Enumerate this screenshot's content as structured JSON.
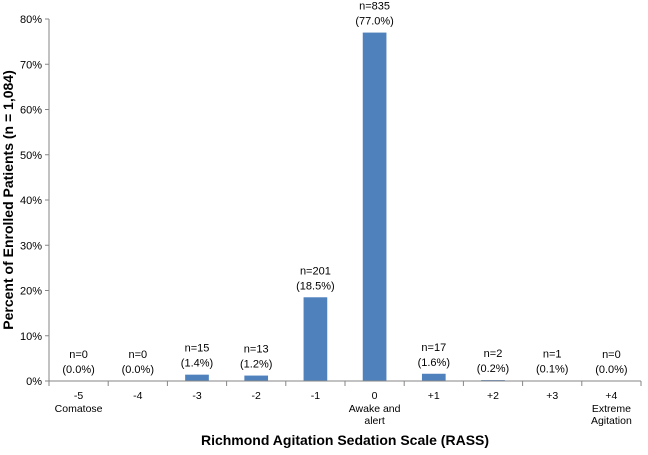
{
  "chart_data": {
    "type": "bar",
    "xlabel": "Richmond Agitation Sedation Scale (RASS)",
    "ylabel": "Percent of Enrolled Patients (n = 1,084)",
    "ylim": [
      0,
      80
    ],
    "yticks": [
      0,
      10,
      20,
      30,
      40,
      50,
      60,
      70,
      80
    ],
    "ytick_format": "%",
    "grid": false,
    "bar_color": "#4F81BD",
    "categories": [
      "-5",
      "-4",
      "-3",
      "-2",
      "-1",
      "0",
      "+1",
      "+2",
      "+3",
      "+4"
    ],
    "category_sublabels": [
      [
        "Comatose"
      ],
      [],
      [],
      [],
      [],
      [
        "Awake and",
        "alert"
      ],
      [],
      [],
      [],
      [
        "Extreme",
        "Agitation"
      ]
    ],
    "values": [
      0.0,
      0.0,
      1.4,
      1.2,
      18.5,
      77.0,
      1.6,
      0.2,
      0.1,
      0.0
    ],
    "data_labels": [
      [
        "n=0",
        "(0.0%)"
      ],
      [
        "n=0",
        "(0.0%)"
      ],
      [
        "n=15",
        "(1.4%)"
      ],
      [
        "n=13",
        "(1.2%)"
      ],
      [
        "n=201",
        "(18.5%)"
      ],
      [
        "n=835",
        "(77.0%)"
      ],
      [
        "n=17",
        "(1.6%)"
      ],
      [
        "n=2",
        "(0.2%)"
      ],
      [
        "n=1",
        "(0.1%)"
      ],
      [
        "n=0",
        "(0.0%)"
      ]
    ]
  }
}
